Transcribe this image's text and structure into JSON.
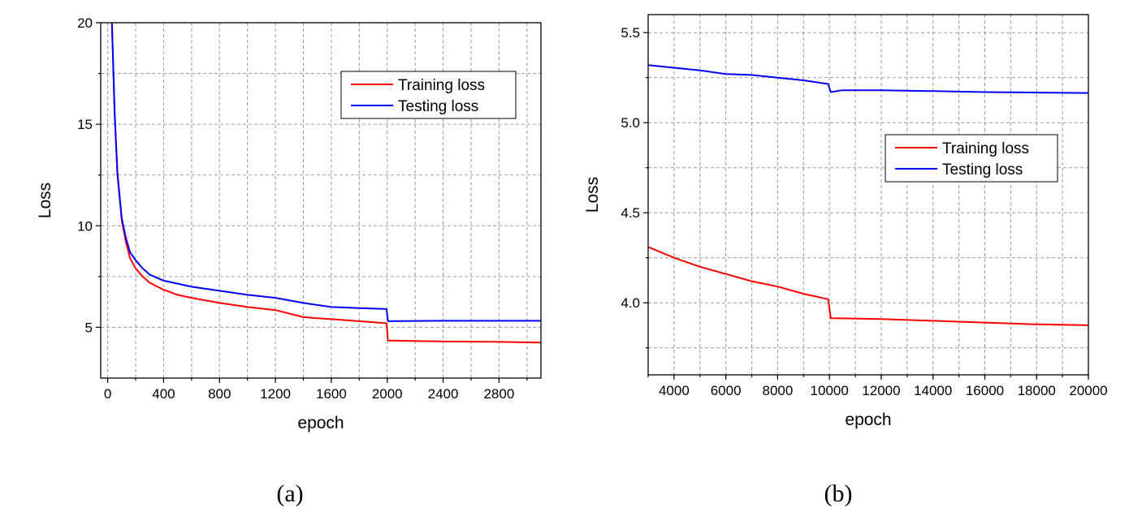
{
  "chart_data": [
    {
      "type": "line",
      "panel_label": "(a)",
      "xlabel": "epoch",
      "ylabel": "Loss",
      "xlim": [
        -50,
        3100
      ],
      "ylim": [
        2.5,
        20
      ],
      "xticks": [
        0,
        400,
        800,
        1200,
        1600,
        2000,
        2400,
        2800
      ],
      "yticks": [
        5,
        10,
        15,
        20
      ],
      "grid": true,
      "legend_position": "top-right",
      "series": [
        {
          "name": "Training loss",
          "color": "#ff0000",
          "x": [
            30,
            50,
            70,
            100,
            130,
            160,
            200,
            250,
            300,
            400,
            500,
            600,
            800,
            1000,
            1200,
            1400,
            1600,
            1800,
            1995,
            2005,
            2400,
            2800,
            3100
          ],
          "y": [
            20,
            15.5,
            12.5,
            10.3,
            9.2,
            8.4,
            7.9,
            7.5,
            7.2,
            6.85,
            6.6,
            6.45,
            6.2,
            6.0,
            5.85,
            5.5,
            5.4,
            5.3,
            5.2,
            4.35,
            4.3,
            4.28,
            4.25
          ]
        },
        {
          "name": "Testing loss",
          "color": "#0000ff",
          "x": [
            30,
            50,
            70,
            100,
            130,
            160,
            200,
            250,
            300,
            400,
            500,
            600,
            800,
            1000,
            1200,
            1400,
            1600,
            1800,
            1995,
            2005,
            2400,
            2800,
            3100
          ],
          "y": [
            20,
            15.5,
            12.6,
            10.4,
            9.4,
            8.7,
            8.3,
            7.9,
            7.6,
            7.3,
            7.15,
            7.0,
            6.8,
            6.6,
            6.45,
            6.2,
            6.0,
            5.95,
            5.9,
            5.3,
            5.32,
            5.32,
            5.32
          ]
        }
      ]
    },
    {
      "type": "line",
      "panel_label": "(b)",
      "xlabel": "epoch",
      "ylabel": "Loss",
      "xlim": [
        3000,
        20000
      ],
      "ylim": [
        3.6,
        5.6
      ],
      "xticks": [
        4000,
        6000,
        8000,
        10000,
        12000,
        14000,
        16000,
        18000,
        20000
      ],
      "yticks": [
        4.0,
        4.5,
        5.0,
        5.5
      ],
      "grid": true,
      "legend_position": "center-right",
      "series": [
        {
          "name": "Training loss",
          "color": "#ff0000",
          "x": [
            3000,
            4000,
            5000,
            6000,
            7000,
            8000,
            9000,
            9950,
            10050,
            12000,
            14000,
            16000,
            18000,
            20000
          ],
          "y": [
            4.31,
            4.25,
            4.2,
            4.16,
            4.12,
            4.09,
            4.05,
            4.02,
            3.915,
            3.91,
            3.9,
            3.89,
            3.88,
            3.875
          ]
        },
        {
          "name": "Testing loss",
          "color": "#0000ff",
          "x": [
            3000,
            4000,
            5000,
            6000,
            7000,
            8000,
            9000,
            9950,
            10050,
            10500,
            12000,
            14000,
            16000,
            18000,
            20000
          ],
          "y": [
            5.32,
            5.305,
            5.29,
            5.27,
            5.265,
            5.25,
            5.235,
            5.215,
            5.17,
            5.18,
            5.18,
            5.175,
            5.17,
            5.167,
            5.165
          ]
        }
      ]
    }
  ]
}
